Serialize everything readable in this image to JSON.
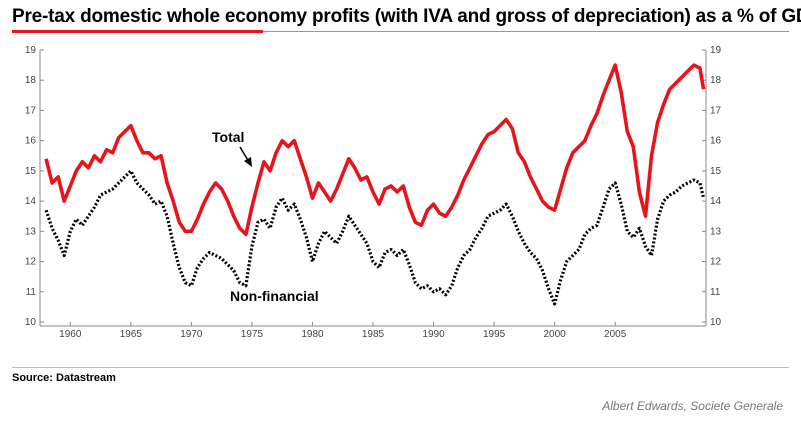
{
  "title": "Pre-tax domestic whole economy profits (with IVA and gross of depreciation) as a % of GDP",
  "source": "Source: Datastream",
  "credit": "Albert Edwards, Societe Generale",
  "colors": {
    "total": "#e8141b",
    "nonfinancial": "#000000",
    "accent": "#e8141b"
  },
  "chart_data": {
    "type": "line",
    "title": "Pre-tax domestic whole economy profits (with IVA and gross of depreciation) as a % of GDP",
    "xlim": [
      1957.5,
      2012.5
    ],
    "ylim": [
      10,
      19
    ],
    "x_ticks": [
      "1960",
      "1965",
      "1970",
      "1975",
      "1980",
      "1985",
      "1990",
      "1995",
      "2000",
      "2005"
    ],
    "y_ticks": [
      "10",
      "11",
      "12",
      "13",
      "14",
      "15",
      "16",
      "17",
      "18",
      "19"
    ],
    "grid": false,
    "annotations": [
      {
        "text": "Total",
        "series": "Total"
      },
      {
        "text": "Non-financial",
        "series": "Non-financial"
      }
    ],
    "series": [
      {
        "name": "Total",
        "style": "solid",
        "points": [
          [
            1958.0,
            15.4
          ],
          [
            1958.5,
            14.6
          ],
          [
            1959.0,
            14.8
          ],
          [
            1959.5,
            14.0
          ],
          [
            1960.0,
            14.5
          ],
          [
            1960.5,
            15.0
          ],
          [
            1961.0,
            15.3
          ],
          [
            1961.5,
            15.1
          ],
          [
            1962.0,
            15.5
          ],
          [
            1962.5,
            15.3
          ],
          [
            1963.0,
            15.7
          ],
          [
            1963.5,
            15.6
          ],
          [
            1964.0,
            16.1
          ],
          [
            1964.5,
            16.3
          ],
          [
            1965.0,
            16.5
          ],
          [
            1965.5,
            16.0
          ],
          [
            1966.0,
            15.6
          ],
          [
            1966.5,
            15.6
          ],
          [
            1967.0,
            15.4
          ],
          [
            1967.5,
            15.5
          ],
          [
            1968.0,
            14.6
          ],
          [
            1968.5,
            14.0
          ],
          [
            1969.0,
            13.3
          ],
          [
            1969.5,
            13.0
          ],
          [
            1970.0,
            13.0
          ],
          [
            1970.5,
            13.4
          ],
          [
            1971.0,
            13.9
          ],
          [
            1971.5,
            14.3
          ],
          [
            1972.0,
            14.6
          ],
          [
            1972.5,
            14.4
          ],
          [
            1973.0,
            14.0
          ],
          [
            1973.5,
            13.5
          ],
          [
            1974.0,
            13.1
          ],
          [
            1974.5,
            12.9
          ],
          [
            1975.0,
            13.8
          ],
          [
            1975.5,
            14.6
          ],
          [
            1976.0,
            15.3
          ],
          [
            1976.5,
            15.0
          ],
          [
            1977.0,
            15.6
          ],
          [
            1977.5,
            16.0
          ],
          [
            1978.0,
            15.8
          ],
          [
            1978.5,
            16.0
          ],
          [
            1979.0,
            15.4
          ],
          [
            1979.5,
            14.8
          ],
          [
            1980.0,
            14.1
          ],
          [
            1980.5,
            14.6
          ],
          [
            1981.0,
            14.3
          ],
          [
            1981.5,
            14.0
          ],
          [
            1982.0,
            14.4
          ],
          [
            1982.5,
            14.9
          ],
          [
            1983.0,
            15.4
          ],
          [
            1983.5,
            15.1
          ],
          [
            1984.0,
            14.7
          ],
          [
            1984.5,
            14.8
          ],
          [
            1985.0,
            14.3
          ],
          [
            1985.5,
            13.9
          ],
          [
            1986.0,
            14.4
          ],
          [
            1986.5,
            14.5
          ],
          [
            1987.0,
            14.3
          ],
          [
            1987.5,
            14.5
          ],
          [
            1988.0,
            13.8
          ],
          [
            1988.5,
            13.3
          ],
          [
            1989.0,
            13.2
          ],
          [
            1989.5,
            13.7
          ],
          [
            1990.0,
            13.9
          ],
          [
            1990.5,
            13.6
          ],
          [
            1991.0,
            13.5
          ],
          [
            1991.5,
            13.8
          ],
          [
            1992.0,
            14.2
          ],
          [
            1992.5,
            14.7
          ],
          [
            1993.0,
            15.1
          ],
          [
            1993.5,
            15.5
          ],
          [
            1994.0,
            15.9
          ],
          [
            1994.5,
            16.2
          ],
          [
            1995.0,
            16.3
          ],
          [
            1995.5,
            16.5
          ],
          [
            1996.0,
            16.7
          ],
          [
            1996.5,
            16.4
          ],
          [
            1997.0,
            15.6
          ],
          [
            1997.5,
            15.3
          ],
          [
            1998.0,
            14.8
          ],
          [
            1998.5,
            14.4
          ],
          [
            1999.0,
            14.0
          ],
          [
            1999.5,
            13.8
          ],
          [
            2000.0,
            13.7
          ],
          [
            2000.5,
            14.4
          ],
          [
            2001.0,
            15.1
          ],
          [
            2001.5,
            15.6
          ],
          [
            2002.0,
            15.8
          ],
          [
            2002.5,
            16.0
          ],
          [
            2003.0,
            16.5
          ],
          [
            2003.5,
            16.9
          ],
          [
            2004.0,
            17.5
          ],
          [
            2004.5,
            18.0
          ],
          [
            2005.0,
            18.5
          ],
          [
            2005.5,
            17.6
          ],
          [
            2006.0,
            16.3
          ],
          [
            2006.5,
            15.8
          ],
          [
            2007.0,
            14.3
          ],
          [
            2007.5,
            13.5
          ],
          [
            2008.0,
            15.5
          ],
          [
            2008.5,
            16.6
          ],
          [
            2009.0,
            17.2
          ],
          [
            2009.5,
            17.7
          ],
          [
            2010.0,
            17.9
          ],
          [
            2010.5,
            18.1
          ],
          [
            2011.0,
            18.3
          ],
          [
            2011.5,
            18.5
          ],
          [
            2012.0,
            18.4
          ],
          [
            2012.3,
            17.7
          ]
        ]
      },
      {
        "name": "Non-financial",
        "style": "dotted",
        "points": [
          [
            1958.0,
            13.7
          ],
          [
            1958.5,
            13.1
          ],
          [
            1959.0,
            12.7
          ],
          [
            1959.5,
            12.2
          ],
          [
            1960.0,
            13.0
          ],
          [
            1960.5,
            13.4
          ],
          [
            1961.0,
            13.2
          ],
          [
            1961.5,
            13.5
          ],
          [
            1962.0,
            13.8
          ],
          [
            1962.5,
            14.2
          ],
          [
            1963.0,
            14.3
          ],
          [
            1963.5,
            14.4
          ],
          [
            1964.0,
            14.6
          ],
          [
            1964.5,
            14.8
          ],
          [
            1965.0,
            15.0
          ],
          [
            1965.5,
            14.6
          ],
          [
            1966.0,
            14.4
          ],
          [
            1966.5,
            14.2
          ],
          [
            1967.0,
            13.9
          ],
          [
            1967.5,
            14.0
          ],
          [
            1968.0,
            13.5
          ],
          [
            1968.5,
            12.6
          ],
          [
            1969.0,
            11.8
          ],
          [
            1969.5,
            11.3
          ],
          [
            1970.0,
            11.2
          ],
          [
            1970.5,
            11.8
          ],
          [
            1971.0,
            12.1
          ],
          [
            1971.5,
            12.3
          ],
          [
            1972.0,
            12.2
          ],
          [
            1972.5,
            12.1
          ],
          [
            1973.0,
            11.9
          ],
          [
            1973.5,
            11.7
          ],
          [
            1974.0,
            11.3
          ],
          [
            1974.5,
            11.2
          ],
          [
            1975.0,
            12.5
          ],
          [
            1975.5,
            13.3
          ],
          [
            1976.0,
            13.4
          ],
          [
            1976.5,
            13.1
          ],
          [
            1977.0,
            13.8
          ],
          [
            1977.5,
            14.1
          ],
          [
            1978.0,
            13.7
          ],
          [
            1978.5,
            13.9
          ],
          [
            1979.0,
            13.4
          ],
          [
            1979.5,
            12.8
          ],
          [
            1980.0,
            12.0
          ],
          [
            1980.5,
            12.6
          ],
          [
            1981.0,
            13.0
          ],
          [
            1981.5,
            12.8
          ],
          [
            1982.0,
            12.6
          ],
          [
            1982.5,
            13.0
          ],
          [
            1983.0,
            13.5
          ],
          [
            1983.5,
            13.2
          ],
          [
            1984.0,
            12.9
          ],
          [
            1984.5,
            12.6
          ],
          [
            1985.0,
            12.0
          ],
          [
            1985.5,
            11.8
          ],
          [
            1986.0,
            12.3
          ],
          [
            1986.5,
            12.4
          ],
          [
            1987.0,
            12.2
          ],
          [
            1987.5,
            12.4
          ],
          [
            1988.0,
            11.9
          ],
          [
            1988.5,
            11.3
          ],
          [
            1989.0,
            11.1
          ],
          [
            1989.5,
            11.2
          ],
          [
            1990.0,
            11.0
          ],
          [
            1990.5,
            11.1
          ],
          [
            1991.0,
            10.9
          ],
          [
            1991.5,
            11.2
          ],
          [
            1992.0,
            11.8
          ],
          [
            1992.5,
            12.2
          ],
          [
            1993.0,
            12.4
          ],
          [
            1993.5,
            12.8
          ],
          [
            1994.0,
            13.1
          ],
          [
            1994.5,
            13.5
          ],
          [
            1995.0,
            13.6
          ],
          [
            1995.5,
            13.7
          ],
          [
            1996.0,
            13.9
          ],
          [
            1996.5,
            13.5
          ],
          [
            1997.0,
            13.0
          ],
          [
            1997.5,
            12.6
          ],
          [
            1998.0,
            12.3
          ],
          [
            1998.5,
            12.1
          ],
          [
            1999.0,
            11.7
          ],
          [
            1999.5,
            11.1
          ],
          [
            2000.0,
            10.6
          ],
          [
            2000.5,
            11.4
          ],
          [
            2001.0,
            12.0
          ],
          [
            2001.5,
            12.2
          ],
          [
            2002.0,
            12.4
          ],
          [
            2002.5,
            12.9
          ],
          [
            2003.0,
            13.1
          ],
          [
            2003.5,
            13.2
          ],
          [
            2004.0,
            13.8
          ],
          [
            2004.5,
            14.4
          ],
          [
            2005.0,
            14.6
          ],
          [
            2005.5,
            13.9
          ],
          [
            2006.0,
            13.0
          ],
          [
            2006.5,
            12.8
          ],
          [
            2007.0,
            13.1
          ],
          [
            2007.5,
            12.5
          ],
          [
            2008.0,
            12.2
          ],
          [
            2008.5,
            13.4
          ],
          [
            2009.0,
            14.0
          ],
          [
            2009.5,
            14.2
          ],
          [
            2010.0,
            14.3
          ],
          [
            2010.5,
            14.5
          ],
          [
            2011.0,
            14.6
          ],
          [
            2011.5,
            14.7
          ],
          [
            2012.0,
            14.6
          ],
          [
            2012.3,
            14.1
          ]
        ]
      }
    ]
  }
}
